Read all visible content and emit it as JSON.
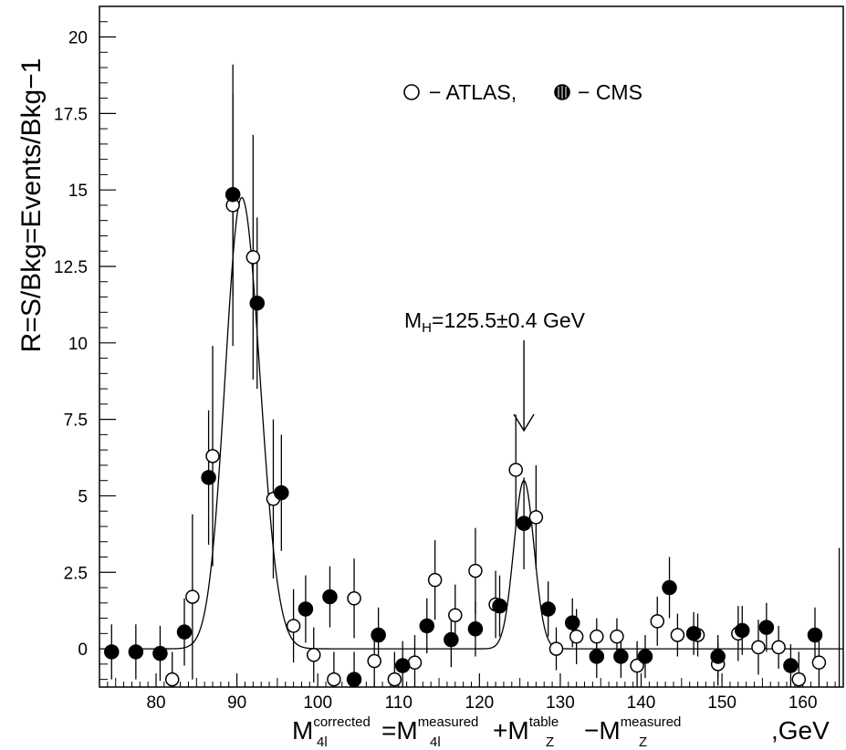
{
  "chart_data": {
    "type": "scatter",
    "title": "",
    "xlim": [
      73,
      165
    ],
    "ylim": [
      -1.25,
      21
    ],
    "x_ticks": [
      80,
      90,
      100,
      110,
      120,
      130,
      140,
      150,
      160
    ],
    "y_ticks": [
      0,
      2.5,
      5,
      7.5,
      10,
      12.5,
      15,
      17.5,
      20
    ],
    "y_tick_labels": [
      "0",
      "2.5",
      "5",
      "7.5",
      "10",
      "12.5",
      "15",
      "17.5",
      "20"
    ],
    "grid": false,
    "ylabel": "R=S/Bkg=Events/Bkg−1",
    "xlabel": {
      "M_main": "M",
      "corrected_sub": "4l",
      "corrected_sup": "corrected",
      "equals": "=M",
      "measured_sub": "4l",
      "measured_sup": "measured",
      "plus": "+M",
      "table_sub": "Z",
      "table_sup": "table",
      "minus": "−M",
      "mz_meas_sub": "Z",
      "mz_meas_sup": "measured",
      "unit": ",GeV"
    },
    "legend": {
      "atlas_label": "− ATLAS,",
      "cms_label": "− CMS",
      "placement": "top-right"
    },
    "annotation": {
      "label_main": "M",
      "label_sub": "H",
      "label_value": "=125.5±0.4 GeV",
      "arrow_x": 125.5
    },
    "series": [
      {
        "name": "ATLAS",
        "marker": "open-circle",
        "points": [
          {
            "x": 82,
            "y": -1.0,
            "err": 0.9
          },
          {
            "x": 84.5,
            "y": 1.7,
            "err": 2.7
          },
          {
            "x": 87,
            "y": 6.3,
            "err": 3.6
          },
          {
            "x": 89.5,
            "y": 14.5,
            "err": 4.6
          },
          {
            "x": 92,
            "y": 12.8,
            "err": 4.0
          },
          {
            "x": 94.5,
            "y": 4.9,
            "err": 2.6
          },
          {
            "x": 97,
            "y": 0.75,
            "err": 1.2
          },
          {
            "x": 99.5,
            "y": -0.2,
            "err": 0.9
          },
          {
            "x": 102,
            "y": -1.0,
            "err": 0.9
          },
          {
            "x": 104.5,
            "y": 1.65,
            "err": 1.3
          },
          {
            "x": 107,
            "y": -0.4,
            "err": 0.9
          },
          {
            "x": 109.5,
            "y": -1.0,
            "err": 0.9
          },
          {
            "x": 112,
            "y": -0.45,
            "err": 0.9
          },
          {
            "x": 114.5,
            "y": 2.25,
            "err": 1.3
          },
          {
            "x": 117,
            "y": 1.1,
            "err": 1.0
          },
          {
            "x": 119.5,
            "y": 2.55,
            "err": 1.4
          },
          {
            "x": 122,
            "y": 1.45,
            "err": 1.1
          },
          {
            "x": 124.5,
            "y": 5.85,
            "err": 1.8
          },
          {
            "x": 127,
            "y": 4.3,
            "err": 1.7
          },
          {
            "x": 129.5,
            "y": 0.0,
            "err": 0.7
          },
          {
            "x": 132,
            "y": 0.4,
            "err": 0.9
          },
          {
            "x": 134.5,
            "y": 0.4,
            "err": 0.6
          },
          {
            "x": 137,
            "y": 0.4,
            "err": 0.6
          },
          {
            "x": 139.5,
            "y": -0.55,
            "err": 0.8
          },
          {
            "x": 142,
            "y": 0.9,
            "err": 0.8
          },
          {
            "x": 144.5,
            "y": 0.45,
            "err": 0.7
          },
          {
            "x": 147,
            "y": 0.45,
            "err": 0.7
          },
          {
            "x": 149.5,
            "y": -0.5,
            "err": 0.7
          },
          {
            "x": 152,
            "y": 0.5,
            "err": 0.9
          },
          {
            "x": 154.5,
            "y": 0.05,
            "err": 0.9
          },
          {
            "x": 157,
            "y": 0.05,
            "err": 0.7
          },
          {
            "x": 159.5,
            "y": -1.0,
            "err": 0.9
          },
          {
            "x": 162,
            "y": -0.45,
            "err": 0.8
          },
          {
            "x": 164.5,
            "y": 0.9,
            "err": 2.4
          }
        ]
      },
      {
        "name": "CMS",
        "marker": "filled-circle",
        "points": [
          {
            "x": 74.5,
            "y": -0.1,
            "err": 0.9
          },
          {
            "x": 77.5,
            "y": -0.1,
            "err": 0.9
          },
          {
            "x": 80.5,
            "y": -0.15,
            "err": 0.9
          },
          {
            "x": 83.5,
            "y": 0.55,
            "err": 1.1
          },
          {
            "x": 86.5,
            "y": 5.6,
            "err": 2.2
          },
          {
            "x": 89.5,
            "y": 14.85,
            "err": 3.3
          },
          {
            "x": 92.5,
            "y": 11.3,
            "err": 2.8
          },
          {
            "x": 95.5,
            "y": 5.1,
            "err": 1.9
          },
          {
            "x": 98.5,
            "y": 1.3,
            "err": 1.1
          },
          {
            "x": 101.5,
            "y": 1.7,
            "err": 1.0
          },
          {
            "x": 104.5,
            "y": -1.0,
            "err": 0.9
          },
          {
            "x": 107.5,
            "y": 0.45,
            "err": 0.9
          },
          {
            "x": 110.5,
            "y": -0.55,
            "err": 0.8
          },
          {
            "x": 113.5,
            "y": 0.75,
            "err": 0.9
          },
          {
            "x": 116.5,
            "y": 0.3,
            "err": 0.9
          },
          {
            "x": 119.5,
            "y": 0.65,
            "err": 0.9
          },
          {
            "x": 122.5,
            "y": 1.4,
            "err": 1.0
          },
          {
            "x": 125.5,
            "y": 4.1,
            "err": 1.5
          },
          {
            "x": 128.5,
            "y": 1.3,
            "err": 0.9
          },
          {
            "x": 131.5,
            "y": 0.85,
            "err": 0.8
          },
          {
            "x": 134.5,
            "y": -0.25,
            "err": 0.7
          },
          {
            "x": 137.5,
            "y": -0.25,
            "err": 0.7
          },
          {
            "x": 140.5,
            "y": -0.25,
            "err": 0.7
          },
          {
            "x": 143.5,
            "y": 2.0,
            "err": 1.0
          },
          {
            "x": 146.5,
            "y": 0.5,
            "err": 0.7
          },
          {
            "x": 149.5,
            "y": -0.25,
            "err": 0.7
          },
          {
            "x": 152.5,
            "y": 0.6,
            "err": 0.8
          },
          {
            "x": 155.5,
            "y": 0.7,
            "err": 0.8
          },
          {
            "x": 158.5,
            "y": -0.55,
            "err": 0.7
          },
          {
            "x": 161.5,
            "y": 0.45,
            "err": 0.9
          }
        ]
      }
    ],
    "fit_curve": {
      "type": "sum-of-gaussians",
      "peaks": [
        {
          "mean": 90.6,
          "amplitude": 14.75,
          "sigma_left": 2.05,
          "sigma_right": 2.25
        },
        {
          "mean": 125.5,
          "amplitude": 5.5,
          "sigma_left": 1.25,
          "sigma_right": 1.25
        }
      ],
      "baseline": 0
    }
  }
}
